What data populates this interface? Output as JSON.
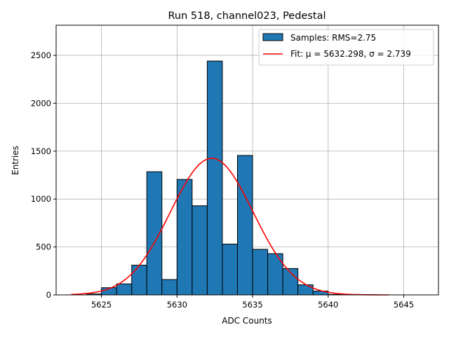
{
  "chart_data": {
    "type": "bar",
    "title": "Run 518, channel023, Pedestal",
    "xlabel": "ADC Counts",
    "ylabel": "Entries",
    "xlim": [
      5622,
      5647.3
    ],
    "ylim": [
      0,
      2814
    ],
    "xticks": [
      5625,
      5630,
      5635,
      5640,
      5645
    ],
    "yticks": [
      0,
      500,
      1000,
      1500,
      2000,
      2500
    ],
    "grid": true,
    "bin_edges_start": 5624,
    "bin_width": 1,
    "values": [
      10,
      75,
      115,
      310,
      1285,
      160,
      1205,
      930,
      2440,
      530,
      1455,
      475,
      430,
      275,
      105,
      40,
      5
    ],
    "fit": {
      "mu": 5632.298,
      "sigma": 2.739,
      "amplitude": 1425,
      "range": [
        5623,
        5644
      ]
    },
    "legend": {
      "placement": "top-right",
      "entries": [
        "Samples: RMS=2.75",
        "Fit: μ = 5632.298, σ = 2.739"
      ]
    },
    "colors": {
      "bar": "#1f77b4",
      "fit": "#ff0000",
      "grid": "#b0b0b0"
    }
  }
}
